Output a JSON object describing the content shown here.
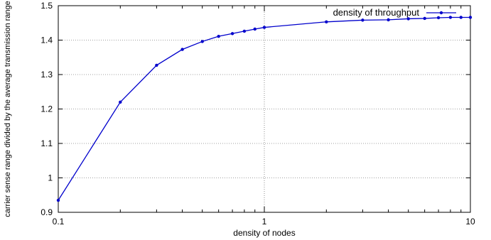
{
  "chart_data": {
    "type": "line",
    "title": "",
    "xlabel": "density of nodes",
    "ylabel": "carrier sense range divided by the average transmission range",
    "x_scale": "log",
    "xlim": [
      0.1,
      10
    ],
    "ylim": [
      0.9,
      1.5
    ],
    "x_ticks": [
      {
        "value": 0.1,
        "label": "0.1"
      },
      {
        "value": 1,
        "label": "1"
      },
      {
        "value": 10,
        "label": "10"
      }
    ],
    "y_ticks": [
      {
        "value": 0.9,
        "label": "0.9"
      },
      {
        "value": 1.0,
        "label": "1"
      },
      {
        "value": 1.1,
        "label": "1.1"
      },
      {
        "value": 1.2,
        "label": "1.2"
      },
      {
        "value": 1.3,
        "label": "1.3"
      },
      {
        "value": 1.4,
        "label": "1.4"
      },
      {
        "value": 1.5,
        "label": "1.5"
      }
    ],
    "grid": true,
    "legend": {
      "placement": "top-right"
    },
    "series_color": "#0000cc",
    "series": [
      {
        "name": "density of throughput",
        "x": [
          0.1,
          0.2,
          0.3,
          0.4,
          0.5,
          0.6,
          0.7,
          0.8,
          0.9,
          1,
          2,
          3,
          4,
          5,
          6,
          7,
          8,
          9,
          10
        ],
        "y": [
          0.935,
          1.22,
          1.327,
          1.373,
          1.396,
          1.411,
          1.419,
          1.426,
          1.432,
          1.437,
          1.453,
          1.458,
          1.459,
          1.462,
          1.463,
          1.465,
          1.466,
          1.466,
          1.466
        ]
      }
    ]
  }
}
